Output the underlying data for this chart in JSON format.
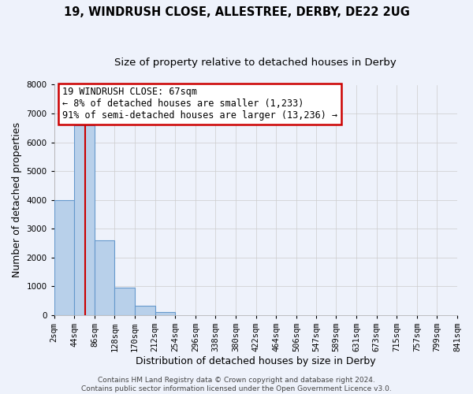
{
  "title": "19, WINDRUSH CLOSE, ALLESTREE, DERBY, DE22 2UG",
  "subtitle": "Size of property relative to detached houses in Derby",
  "xlabel": "Distribution of detached houses by size in Derby",
  "ylabel": "Number of detached properties",
  "bin_edges": [
    2,
    44,
    86,
    128,
    170,
    212,
    254,
    296,
    338,
    380,
    422,
    464,
    506,
    547,
    589,
    631,
    673,
    715,
    757,
    799,
    841
  ],
  "bin_labels": [
    "2sqm",
    "44sqm",
    "86sqm",
    "128sqm",
    "170sqm",
    "212sqm",
    "254sqm",
    "296sqm",
    "338sqm",
    "380sqm",
    "422sqm",
    "464sqm",
    "506sqm",
    "547sqm",
    "589sqm",
    "631sqm",
    "673sqm",
    "715sqm",
    "757sqm",
    "799sqm",
    "841sqm"
  ],
  "bar_heights": [
    4000,
    6600,
    2600,
    960,
    330,
    120,
    0,
    0,
    0,
    0,
    0,
    0,
    0,
    0,
    0,
    0,
    0,
    0,
    0,
    0
  ],
  "bar_color": "#b8d0ea",
  "bar_edge_color": "#6699cc",
  "property_line_x": 67,
  "ylim": [
    0,
    8000
  ],
  "yticks": [
    0,
    1000,
    2000,
    3000,
    4000,
    5000,
    6000,
    7000,
    8000
  ],
  "annotation_title": "19 WINDRUSH CLOSE: 67sqm",
  "annotation_line1": "← 8% of detached houses are smaller (1,233)",
  "annotation_line2": "91% of semi-detached houses are larger (13,236) →",
  "annotation_box_color": "#ffffff",
  "annotation_box_edge": "#cc0000",
  "footer_line1": "Contains HM Land Registry data © Crown copyright and database right 2024.",
  "footer_line2": "Contains public sector information licensed under the Open Government Licence v3.0.",
  "background_color": "#eef2fb",
  "grid_color": "#cccccc",
  "red_line_color": "#cc0000",
  "title_fontsize": 10.5,
  "subtitle_fontsize": 9.5,
  "axis_label_fontsize": 9,
  "tick_fontsize": 7.5,
  "footer_fontsize": 6.5,
  "annotation_fontsize": 8.5
}
